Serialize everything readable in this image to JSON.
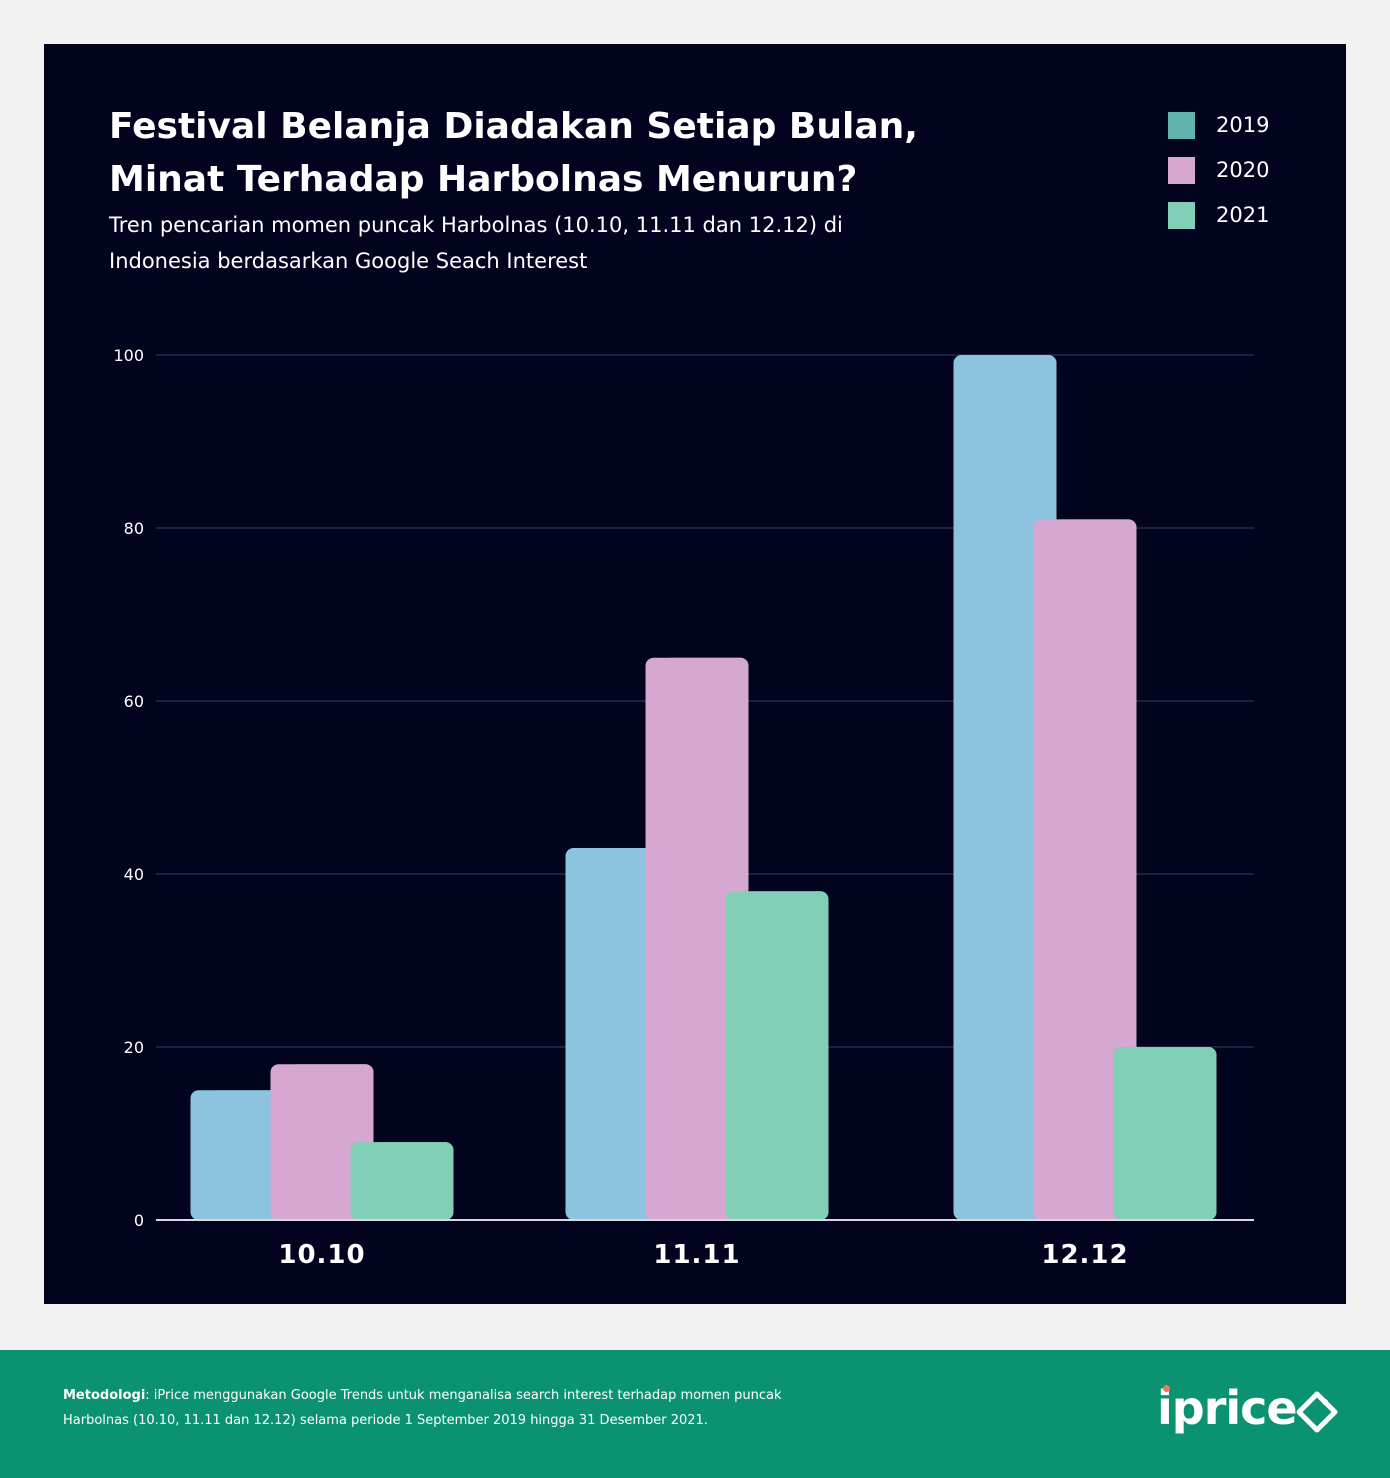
{
  "header": {
    "title_line1": "Festival Belanja Diadakan Setiap Bulan,",
    "title_line2": "Minat Terhadap Harbolnas Menurun?",
    "subtitle_line1": "Tren pencarian momen puncak Harbolnas (10.10, 11.11 dan 12.12) di",
    "subtitle_line2": "Indonesia berdasarkan Google Seach Interest"
  },
  "legend": [
    {
      "label": "2019",
      "color": "#5fb5ad"
    },
    {
      "label": "2020",
      "color": "#d6a8d1"
    },
    {
      "label": "2021",
      "color": "#80cfb6"
    }
  ],
  "chart_data": {
    "type": "bar",
    "categories": [
      "10.10",
      "11.11",
      "12.12"
    ],
    "series": [
      {
        "name": "2019",
        "values": [
          15,
          43,
          100
        ],
        "color": "#8cc4e0"
      },
      {
        "name": "2020",
        "values": [
          18,
          65,
          81
        ],
        "color": "#d6a8d1"
      },
      {
        "name": "2021",
        "values": [
          9,
          38,
          20
        ],
        "color": "#80cfb6"
      }
    ],
    "yticks": [
      0,
      20,
      40,
      60,
      80,
      100
    ],
    "ylim": [
      0,
      100
    ],
    "grid": true,
    "legend_position": "top-right"
  },
  "footer": {
    "method_label": "Metodologi",
    "method_line1": ": iPrice menggunakan Google Trends untuk menganalisa search interest terhadap momen puncak",
    "method_line2": "Harbolnas (10.10, 11.11 dan 12.12) selama periode 1 September 2019 hingga 31 Desember 2021.",
    "logo_text": "iprice",
    "logo_accent": "#f07a55"
  }
}
